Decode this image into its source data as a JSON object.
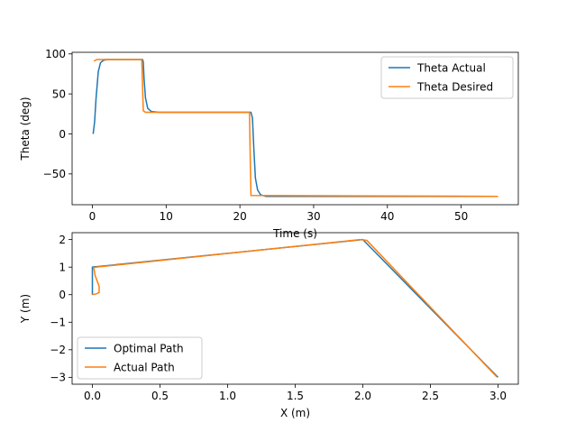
{
  "chart_data": [
    {
      "type": "line",
      "title": "",
      "xlabel": "Time (s)",
      "ylabel": "Theta (deg)",
      "xlim": [
        -2.75,
        57.75
      ],
      "ylim": [
        -88.5,
        102
      ],
      "xticks": [
        0,
        10,
        20,
        30,
        40,
        50
      ],
      "yticks": [
        -50,
        0,
        50,
        100
      ],
      "grid": false,
      "legend_position": "upper right",
      "series": [
        {
          "name": "Theta Actual",
          "color": "#1f77b4",
          "x": [
            0.1,
            0.3,
            0.5,
            0.8,
            1.1,
            1.5,
            2.0,
            3.0,
            6.8,
            6.9,
            7.0,
            7.2,
            7.5,
            8.0,
            9.0,
            21.5,
            21.7,
            21.9,
            22.1,
            22.4,
            22.8,
            23.5,
            55.0
          ],
          "y": [
            0,
            15,
            45,
            78,
            89,
            92,
            93,
            93,
            93,
            90,
            70,
            45,
            32,
            28,
            27,
            27,
            20,
            -20,
            -55,
            -70,
            -76,
            -78,
            -78
          ]
        },
        {
          "name": "Theta Desired",
          "color": "#ff7f0e",
          "x": [
            0.2,
            0.6,
            1.0,
            6.7,
            6.8,
            6.9,
            7.2,
            21.3,
            21.4,
            21.5,
            55.0
          ],
          "y": [
            91,
            93,
            93,
            93,
            60,
            29,
            27,
            27,
            -30,
            -77,
            -78
          ]
        }
      ]
    },
    {
      "type": "line",
      "title": "",
      "xlabel": "X (m)",
      "ylabel": "Y (m)",
      "xlim": [
        -0.15,
        3.15
      ],
      "ylim": [
        -3.25,
        2.25
      ],
      "xticks": [
        0.0,
        0.5,
        1.0,
        1.5,
        2.0,
        2.5,
        3.0
      ],
      "yticks": [
        -3,
        -2,
        -1,
        0,
        1,
        2
      ],
      "grid": false,
      "legend_position": "lower left",
      "series": [
        {
          "name": "Optimal Path",
          "color": "#1f77b4",
          "x": [
            0,
            0,
            2,
            3
          ],
          "y": [
            0,
            1,
            2,
            -3
          ]
        },
        {
          "name": "Actual Path",
          "color": "#ff7f0e",
          "x": [
            0.0,
            0.03,
            0.05,
            0.05,
            0.02,
            0.01,
            0.03,
            1.98,
            2.03,
            2.99
          ],
          "y": [
            0.0,
            0.03,
            0.08,
            0.3,
            0.7,
            0.98,
            1.0,
            2.0,
            1.97,
            -2.98
          ]
        }
      ]
    }
  ]
}
